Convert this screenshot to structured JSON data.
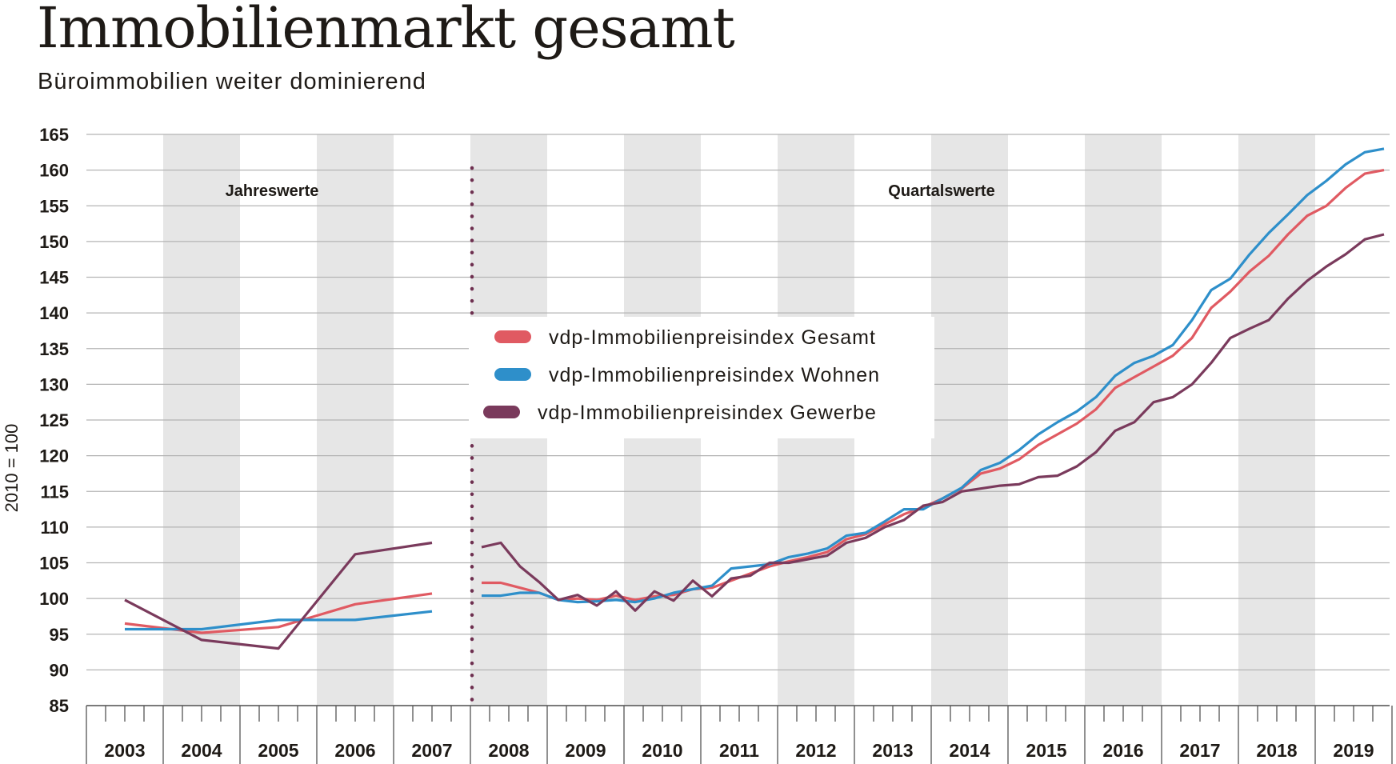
{
  "header": {
    "title": "Immobilienmarkt gesamt",
    "subtitle": "Büroimmobilien weiter dominierend"
  },
  "chart_data": {
    "type": "line",
    "ylabel": "2010 = 100",
    "ylim": [
      85,
      165
    ],
    "y_ticks": [
      165,
      160,
      155,
      150,
      145,
      140,
      135,
      130,
      125,
      120,
      115,
      110,
      105,
      100,
      95,
      90,
      85
    ],
    "years": [
      "2003",
      "2004",
      "2005",
      "2006",
      "2007",
      "2008",
      "2009",
      "2010",
      "2011",
      "2012",
      "2013",
      "2014",
      "2015",
      "2016",
      "2017",
      "2018",
      "2019"
    ],
    "grid": true,
    "legend_position": "center-left",
    "sections": [
      "Jahreswerte",
      "Quartalswerte"
    ],
    "colors": {
      "gesamt": "#e05a62",
      "wohnen": "#2e8fca",
      "gewerbe": "#7a3a5c",
      "band": "#e6e6e6",
      "divider": "#6e3050"
    },
    "annual": {
      "x": [
        2003,
        2004,
        2005,
        2006,
        2007
      ],
      "series": [
        {
          "name": "vdp-Immobilienpreisindex Gesamt",
          "key": "gesamt",
          "values": [
            96.5,
            95.2,
            96.0,
            99.2,
            100.7
          ]
        },
        {
          "name": "vdp-Immobilienpreisindex Wohnen",
          "key": "wohnen",
          "values": [
            95.7,
            95.7,
            97.0,
            97.0,
            98.2
          ]
        },
        {
          "name": "vdp-Immobilienpreisindex Gewerbe",
          "key": "gewerbe",
          "values": [
            99.8,
            94.2,
            93.0,
            106.2,
            107.8
          ]
        }
      ]
    },
    "quarterly": {
      "x": [
        "2008-Q1",
        "2008-Q2",
        "2008-Q3",
        "2008-Q4",
        "2009-Q1",
        "2009-Q2",
        "2009-Q3",
        "2009-Q4",
        "2010-Q1",
        "2010-Q2",
        "2010-Q3",
        "2010-Q4",
        "2011-Q1",
        "2011-Q2",
        "2011-Q3",
        "2011-Q4",
        "2012-Q1",
        "2012-Q2",
        "2012-Q3",
        "2012-Q4",
        "2013-Q1",
        "2013-Q2",
        "2013-Q3",
        "2013-Q4",
        "2014-Q1",
        "2014-Q2",
        "2014-Q3",
        "2014-Q4",
        "2015-Q1",
        "2015-Q2",
        "2015-Q3",
        "2015-Q4",
        "2016-Q1",
        "2016-Q2",
        "2016-Q3",
        "2016-Q4",
        "2017-Q1",
        "2017-Q2",
        "2017-Q3",
        "2017-Q4",
        "2018-Q1",
        "2018-Q2",
        "2018-Q3",
        "2018-Q4",
        "2019-Q1",
        "2019-Q2",
        "2019-Q3",
        "2019-Q4"
      ],
      "series": [
        {
          "name": "vdp-Immobilienpreisindex Gesamt",
          "key": "gesamt",
          "values": [
            102.2,
            102.2,
            101.5,
            100.8,
            99.8,
            100.0,
            99.8,
            100.4,
            99.8,
            100.3,
            100.5,
            101.3,
            101.5,
            102.5,
            103.5,
            104.5,
            105.2,
            105.8,
            106.5,
            108.3,
            109.0,
            110.4,
            111.8,
            112.8,
            114.0,
            115.4,
            117.5,
            118.2,
            119.5,
            121.5,
            123.0,
            124.5,
            126.5,
            129.5,
            131.0,
            132.5,
            134.0,
            136.5,
            140.7,
            143.0,
            145.8,
            148.0,
            151.0,
            153.6,
            155.0,
            157.5,
            159.5,
            160.0
          ]
        },
        {
          "name": "vdp-Immobilienpreisindex Wohnen",
          "key": "wohnen",
          "values": [
            100.4,
            100.4,
            100.8,
            100.8,
            99.8,
            99.5,
            99.6,
            99.8,
            99.5,
            100.0,
            100.8,
            101.3,
            101.8,
            104.2,
            104.5,
            104.8,
            105.8,
            106.3,
            107.0,
            108.8,
            109.2,
            110.8,
            112.5,
            112.5,
            114.0,
            115.5,
            118.0,
            119.0,
            120.8,
            123.0,
            124.7,
            126.2,
            128.2,
            131.2,
            133.0,
            134.0,
            135.5,
            139.0,
            143.2,
            144.8,
            148.2,
            151.2,
            153.8,
            156.5,
            158.5,
            160.8,
            162.5,
            163.0
          ]
        },
        {
          "name": "vdp-Immobilienpreisindex Gewerbe",
          "key": "gewerbe",
          "values": [
            107.2,
            107.8,
            104.5,
            102.3,
            99.8,
            100.5,
            99.0,
            101.0,
            98.3,
            101.0,
            99.7,
            102.5,
            100.3,
            102.8,
            103.2,
            105.0,
            105.0,
            105.5,
            106.0,
            107.8,
            108.5,
            110.0,
            111.0,
            113.0,
            113.5,
            115.0,
            115.4,
            115.8,
            116.0,
            117.0,
            117.2,
            118.5,
            120.5,
            123.5,
            124.7,
            127.5,
            128.2,
            130.0,
            133.0,
            136.5,
            137.8,
            139.0,
            142.0,
            144.5,
            146.5,
            148.2,
            150.3,
            151.0
          ]
        }
      ]
    }
  }
}
